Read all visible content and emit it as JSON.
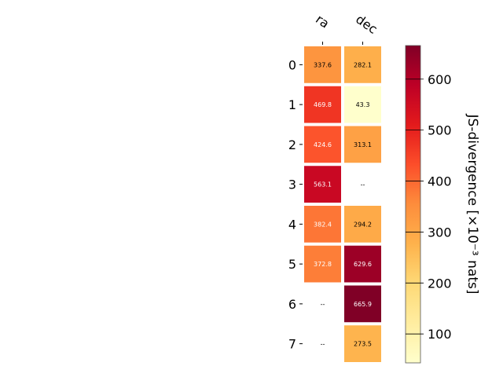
{
  "chart_data": {
    "type": "heatmap",
    "columns": [
      "ra",
      "dec"
    ],
    "rows": [
      "0",
      "1",
      "2",
      "3",
      "4",
      "5",
      "6",
      "7"
    ],
    "values": [
      [
        337.6,
        282.1
      ],
      [
        469.8,
        43.3
      ],
      [
        424.6,
        313.1
      ],
      [
        563.1,
        null
      ],
      [
        382.4,
        294.2
      ],
      [
        372.8,
        629.6
      ],
      [
        null,
        665.9
      ],
      [
        null,
        273.5
      ]
    ],
    "missing_label": "--",
    "colorbar": {
      "label": "JS-divergence [×10⁻³ nats]",
      "range": [
        43.3,
        665.9
      ],
      "ticks": [
        100,
        200,
        300,
        400,
        500,
        600
      ],
      "colormap": "YlOrRd"
    }
  }
}
